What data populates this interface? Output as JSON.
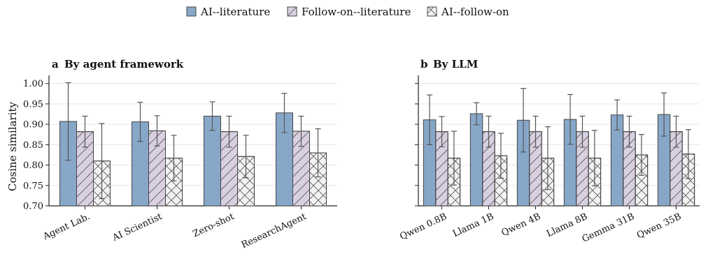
{
  "legend": {
    "items": [
      {
        "label": "AI--literature",
        "color": "#87a7c9",
        "pattern": "none"
      },
      {
        "label": "Follow-on--literature",
        "color": "#d8cfe0",
        "pattern": "diagonal"
      },
      {
        "label": "AI--follow-on",
        "color": "#f2f2f2",
        "pattern": "crosshatch"
      }
    ]
  },
  "chart_data": [
    {
      "type": "bar",
      "panel_letter": "a",
      "title": "By agent framework",
      "ylabel": "Cosine similarity",
      "xlabel": "",
      "ylim": [
        0.7,
        1.02
      ],
      "yticks": [
        0.7,
        0.75,
        0.8,
        0.85,
        0.9,
        0.95,
        1.0
      ],
      "ytick_labels": [
        "0.70",
        "0.75",
        "0.80",
        "0.85",
        "0.90",
        "0.95",
        "1.00"
      ],
      "grid": "horizontal",
      "categories": [
        "Agent Lab.",
        "AI Scientist",
        "Zero-shot",
        "ResearchAgent"
      ],
      "series": [
        {
          "name": "AI--literature",
          "values": [
            0.907,
            0.906,
            0.92,
            0.928
          ],
          "errors": [
            0.095,
            0.048,
            0.035,
            0.048
          ]
        },
        {
          "name": "Follow-on--literature",
          "values": [
            0.882,
            0.884,
            0.882,
            0.883
          ],
          "errors": [
            0.038,
            0.037,
            0.038,
            0.037
          ]
        },
        {
          "name": "AI--follow-on",
          "values": [
            0.81,
            0.817,
            0.821,
            0.83
          ],
          "errors": [
            0.092,
            0.056,
            0.052,
            0.059
          ]
        }
      ]
    },
    {
      "type": "bar",
      "panel_letter": "b",
      "title": "By LLM",
      "ylabel": "",
      "xlabel": "",
      "ylim": [
        0.7,
        1.02
      ],
      "yticks": [
        0.7,
        0.75,
        0.8,
        0.85,
        0.9,
        0.95,
        1.0
      ],
      "ytick_labels": [],
      "grid": "horizontal",
      "categories": [
        "Qwen 0.8B",
        "Llama 1B",
        "Qwen 4B",
        "Llama 8B",
        "Gemma 31B",
        "Qwen 35B"
      ],
      "series": [
        {
          "name": "AI--literature",
          "values": [
            0.911,
            0.926,
            0.91,
            0.912,
            0.923,
            0.924
          ],
          "errors": [
            0.061,
            0.027,
            0.078,
            0.061,
            0.037,
            0.053
          ]
        },
        {
          "name": "Follow-on--literature",
          "values": [
            0.882,
            0.882,
            0.882,
            0.882,
            0.882,
            0.882
          ],
          "errors": [
            0.037,
            0.038,
            0.038,
            0.038,
            0.038,
            0.038
          ]
        },
        {
          "name": "AI--follow-on",
          "values": [
            0.817,
            0.823,
            0.817,
            0.817,
            0.825,
            0.827
          ],
          "errors": [
            0.066,
            0.055,
            0.077,
            0.068,
            0.05,
            0.06
          ]
        }
      ]
    }
  ]
}
